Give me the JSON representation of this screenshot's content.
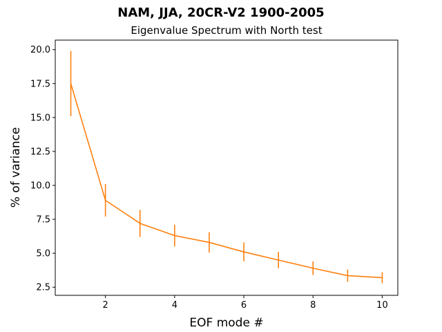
{
  "chart_data": {
    "type": "line",
    "title": "NAM, JJA, 20CR-V2 1900-2005",
    "subtitle": "Eigenvalue Spectrum with North test",
    "xlabel": "EOF mode #",
    "ylabel": "% of variance",
    "xlim": [
      0.55,
      10.45
    ],
    "ylim": [
      1.9,
      20.7
    ],
    "xticks": [
      2,
      4,
      6,
      8,
      10
    ],
    "yticks": [
      2.5,
      5.0,
      7.5,
      10.0,
      12.5,
      15.0,
      17.5,
      20.0
    ],
    "ytick_labels": [
      "2.5",
      "5.0",
      "7.5",
      "10.0",
      "12.5",
      "15.0",
      "17.5",
      "20.0"
    ],
    "grid": false,
    "series": [
      {
        "color": "#ff7f0e",
        "x": [
          1,
          2,
          3,
          4,
          5,
          6,
          7,
          8,
          9,
          10
        ],
        "values": [
          17.5,
          8.9,
          7.2,
          6.3,
          5.8,
          5.1,
          4.5,
          3.9,
          3.35,
          3.2
        ],
        "error": [
          2.4,
          1.2,
          1.0,
          0.8,
          0.75,
          0.7,
          0.6,
          0.5,
          0.45,
          0.4
        ]
      }
    ]
  }
}
